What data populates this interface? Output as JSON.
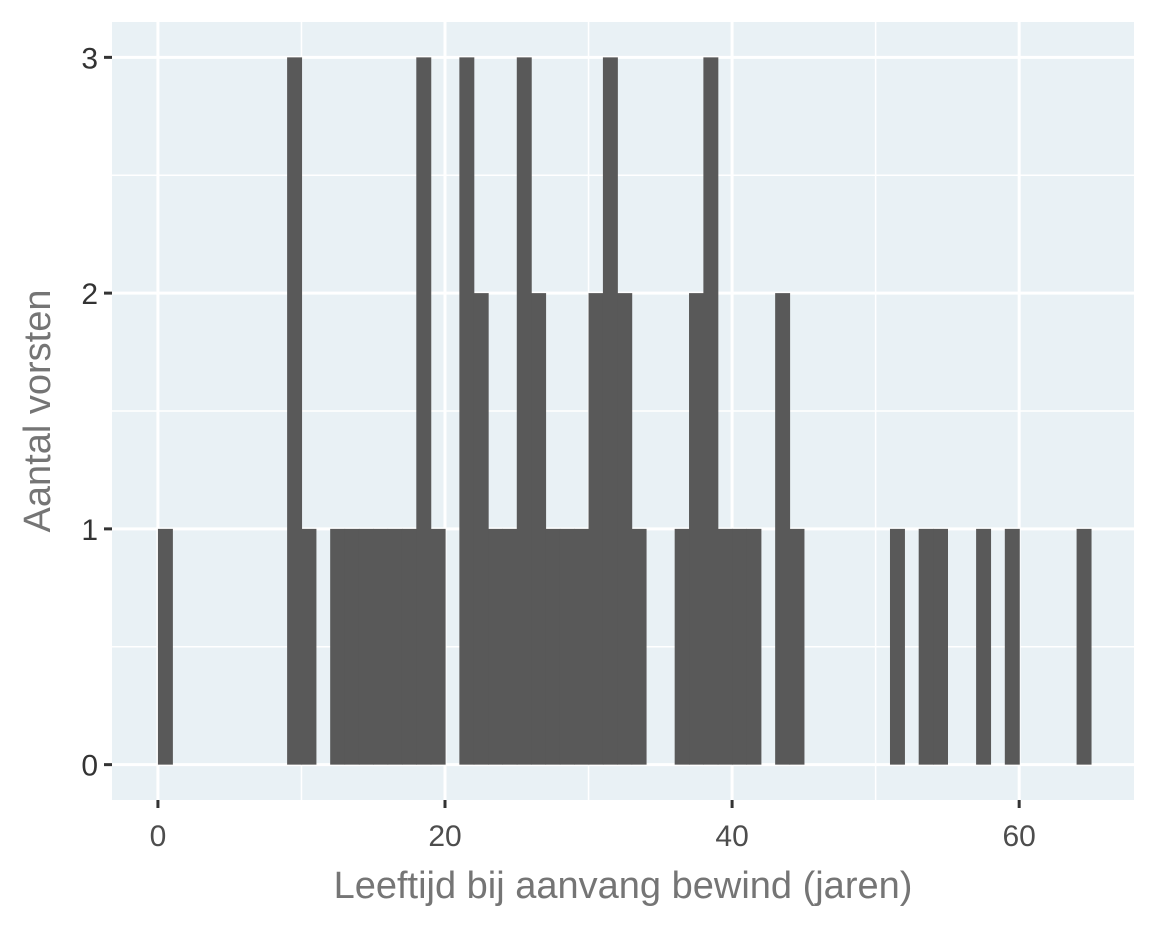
{
  "chart_data": {
    "type": "bar",
    "subtype": "histogram",
    "title": "",
    "xlabel": "Leeftijd bij aanvang bewind (jaren)",
    "ylabel": "Aantal vorsten",
    "bin_width": 1,
    "xlim": [
      -3.2,
      68
    ],
    "ylim": [
      -0.15,
      3.15
    ],
    "x_ticks": [
      0,
      20,
      40,
      60
    ],
    "x_tick_labels": [
      "0",
      "20",
      "40",
      "60"
    ],
    "y_ticks": [
      0,
      1,
      2,
      3
    ],
    "y_tick_labels": [
      "0",
      "1",
      "2",
      "3"
    ],
    "grid": true,
    "legend": "none",
    "bins": [
      {
        "x": 0,
        "count": 1
      },
      {
        "x": 9,
        "count": 3
      },
      {
        "x": 10,
        "count": 1
      },
      {
        "x": 12,
        "count": 1
      },
      {
        "x": 13,
        "count": 1
      },
      {
        "x": 14,
        "count": 1
      },
      {
        "x": 15,
        "count": 1
      },
      {
        "x": 16,
        "count": 1
      },
      {
        "x": 17,
        "count": 1
      },
      {
        "x": 18,
        "count": 3
      },
      {
        "x": 19,
        "count": 1
      },
      {
        "x": 21,
        "count": 3
      },
      {
        "x": 22,
        "count": 2
      },
      {
        "x": 23,
        "count": 1
      },
      {
        "x": 24,
        "count": 1
      },
      {
        "x": 25,
        "count": 3
      },
      {
        "x": 26,
        "count": 2
      },
      {
        "x": 27,
        "count": 1
      },
      {
        "x": 28,
        "count": 1
      },
      {
        "x": 29,
        "count": 1
      },
      {
        "x": 30,
        "count": 2
      },
      {
        "x": 31,
        "count": 3
      },
      {
        "x": 32,
        "count": 2
      },
      {
        "x": 33,
        "count": 1
      },
      {
        "x": 36,
        "count": 1
      },
      {
        "x": 37,
        "count": 2
      },
      {
        "x": 38,
        "count": 3
      },
      {
        "x": 39,
        "count": 1
      },
      {
        "x": 40,
        "count": 1
      },
      {
        "x": 41,
        "count": 1
      },
      {
        "x": 43,
        "count": 2
      },
      {
        "x": 44,
        "count": 1
      },
      {
        "x": 51,
        "count": 1
      },
      {
        "x": 53,
        "count": 1
      },
      {
        "x": 54,
        "count": 1
      },
      {
        "x": 57,
        "count": 1
      },
      {
        "x": 59,
        "count": 1
      },
      {
        "x": 64,
        "count": 1
      }
    ],
    "colors": {
      "panel_background": "#e9f1f5",
      "grid": "#ffffff",
      "bar_fill": "#595959",
      "tick_mark": "#333333"
    }
  }
}
